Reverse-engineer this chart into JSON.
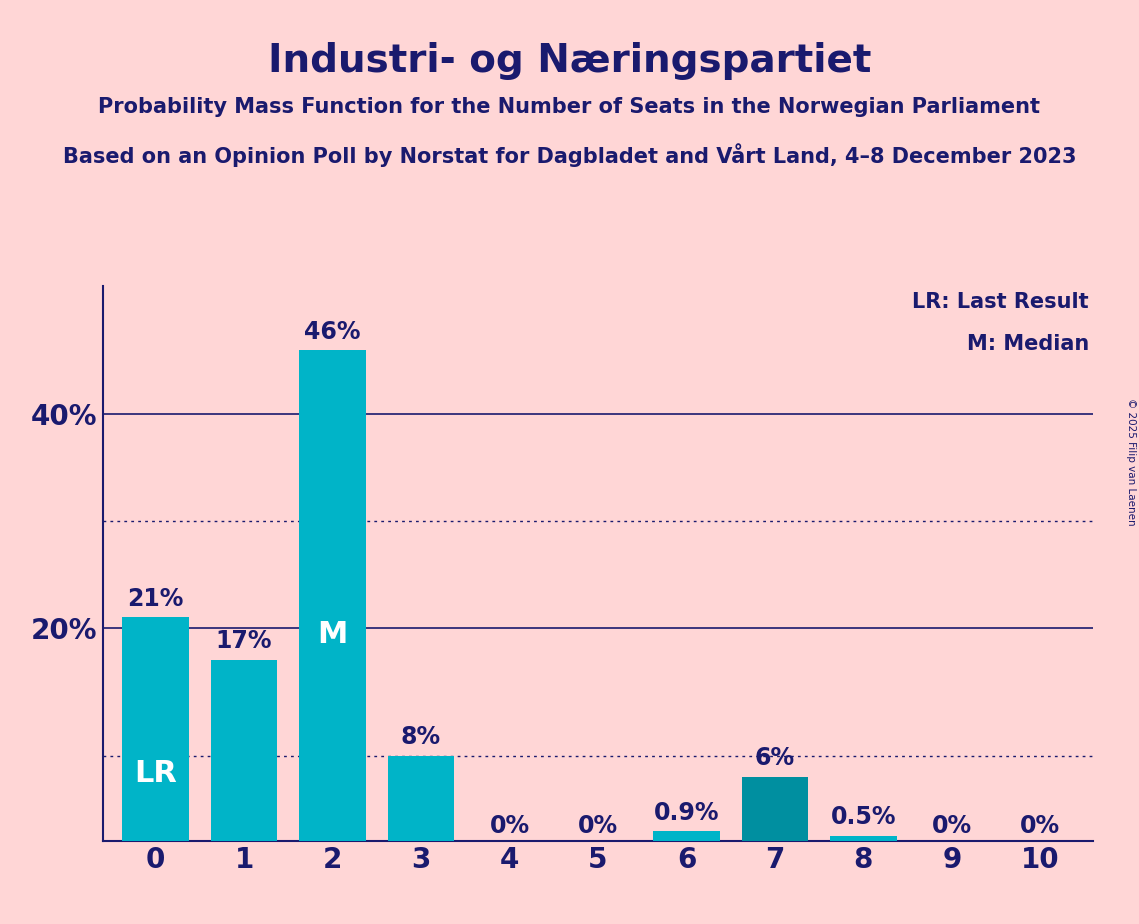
{
  "title": "Industri- og Næringspartiet",
  "subtitle1": "Probability Mass Function for the Number of Seats in the Norwegian Parliament",
  "subtitle2": "Based on an Opinion Poll by Norstat for Dagbladet and Vårt Land, 4–8 December 2023",
  "copyright": "© 2025 Filip van Laenen",
  "seats": [
    0,
    1,
    2,
    3,
    4,
    5,
    6,
    7,
    8,
    9,
    10
  ],
  "probabilities": [
    0.21,
    0.17,
    0.46,
    0.08,
    0.0,
    0.0,
    0.009,
    0.06,
    0.005,
    0.0,
    0.0
  ],
  "bar_color": "#00b4c8",
  "bar_color_7": "#008fa0",
  "background_color": "#ffd6d6",
  "text_color": "#1a1a6e",
  "lr_seat": 0,
  "median_seat": 2,
  "yticks": [
    0.0,
    0.2,
    0.4
  ],
  "ytick_labels": [
    "",
    "20%",
    "40%"
  ],
  "dotted_line_1": 0.3,
  "dotted_line_2": 0.08,
  "legend_lr": "LR: Last Result",
  "legend_m": "M: Median",
  "bar_labels": [
    "21%",
    "17%",
    "46%",
    "8%",
    "0%",
    "0%",
    "0.9%",
    "6%",
    "0.5%",
    "0%",
    "0%"
  ],
  "ylim": [
    0,
    0.52
  ],
  "figsize": [
    11.39,
    9.24
  ],
  "dpi": 100
}
